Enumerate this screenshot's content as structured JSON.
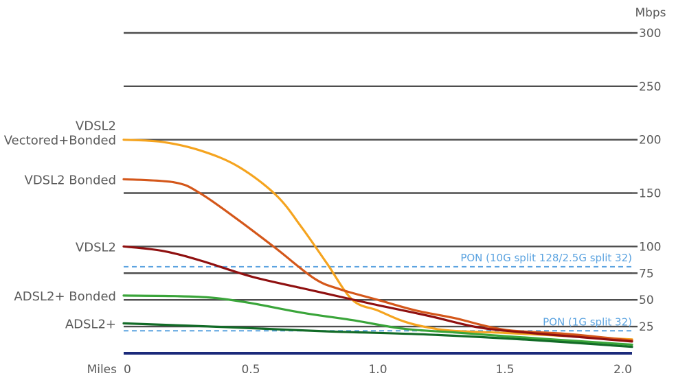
{
  "chart_data": {
    "type": "line",
    "y_unit_label": "Mbps",
    "x_unit_label": "Miles",
    "xlim": [
      0,
      2.0
    ],
    "ylim": [
      0,
      300
    ],
    "x_ticks": [
      {
        "value": 0,
        "label": "0"
      },
      {
        "value": 0.5,
        "label": "0.5"
      },
      {
        "value": 1.0,
        "label": "1.0"
      },
      {
        "value": 1.5,
        "label": "1.5"
      },
      {
        "value": 2.0,
        "label": "2.0"
      }
    ],
    "y_ticks": [
      {
        "value": 25,
        "label": "25"
      },
      {
        "value": 50,
        "label": "50"
      },
      {
        "value": 75,
        "label": "75"
      },
      {
        "value": 100,
        "label": "100"
      },
      {
        "value": 150,
        "label": "150"
      },
      {
        "value": 200,
        "label": "200"
      },
      {
        "value": 250,
        "label": "250"
      },
      {
        "value": 300,
        "label": "300"
      }
    ],
    "reference_lines": [
      {
        "label": "PON (10G split 128/2.5G split 32)",
        "value": 81,
        "color": "#5ba3e0"
      },
      {
        "label": "PON (1G split 32)",
        "value": 21,
        "color": "#5ba3e0"
      }
    ],
    "series": [
      {
        "name": "VDSL2 Vectored+Bonded",
        "color": "#f5a41f",
        "points": [
          [
            0,
            200
          ],
          [
            0.15,
            198
          ],
          [
            0.3,
            190
          ],
          [
            0.45,
            175
          ],
          [
            0.6,
            148
          ],
          [
            0.7,
            118
          ],
          [
            0.8,
            84
          ],
          [
            0.9,
            50
          ],
          [
            1.0,
            40
          ],
          [
            1.1,
            30
          ],
          [
            1.2,
            24
          ],
          [
            1.3,
            21
          ],
          [
            1.5,
            19
          ],
          [
            1.75,
            16
          ],
          [
            2.0,
            13
          ]
        ]
      },
      {
        "name": "VDSL2 Bonded",
        "color": "#d4571a",
        "points": [
          [
            0,
            163
          ],
          [
            0.2,
            160
          ],
          [
            0.3,
            150
          ],
          [
            0.45,
            125
          ],
          [
            0.6,
            98
          ],
          [
            0.75,
            70
          ],
          [
            0.85,
            60
          ],
          [
            1.0,
            50
          ],
          [
            1.15,
            40
          ],
          [
            1.3,
            33
          ],
          [
            1.5,
            22
          ],
          [
            1.75,
            18
          ],
          [
            2.0,
            12
          ]
        ]
      },
      {
        "name": "VDSL2",
        "color": "#8f1010",
        "points": [
          [
            0,
            100
          ],
          [
            0.15,
            96
          ],
          [
            0.3,
            87
          ],
          [
            0.5,
            72
          ],
          [
            0.7,
            61
          ],
          [
            0.85,
            53
          ],
          [
            1.0,
            45
          ],
          [
            1.2,
            35
          ],
          [
            1.4,
            24
          ],
          [
            1.6,
            19
          ],
          [
            1.8,
            15
          ],
          [
            2.0,
            11
          ]
        ]
      },
      {
        "name": "ADSL2+ Bonded",
        "color": "#3aa53a",
        "points": [
          [
            0,
            54
          ],
          [
            0.2,
            53.5
          ],
          [
            0.35,
            52
          ],
          [
            0.5,
            47
          ],
          [
            0.7,
            38
          ],
          [
            0.9,
            31
          ],
          [
            1.1,
            23
          ],
          [
            1.3,
            19.5
          ],
          [
            1.5,
            16
          ],
          [
            1.75,
            12
          ],
          [
            2.0,
            8
          ]
        ]
      },
      {
        "name": "ADSL2+",
        "color": "#126b27",
        "points": [
          [
            0,
            28
          ],
          [
            0.4,
            24.5
          ],
          [
            0.8,
            20.5
          ],
          [
            1.2,
            17.5
          ],
          [
            1.6,
            12.5
          ],
          [
            2.0,
            6
          ]
        ]
      }
    ],
    "baseline": {
      "value": 0,
      "color": "#1b2a7a"
    },
    "series_labels": [
      {
        "lines": [
          "VDSL2",
          "Vectored+Bonded"
        ],
        "value": 200
      },
      {
        "lines": [
          "VDSL2 Bonded"
        ],
        "value": 163
      },
      {
        "lines": [
          "VDSL2"
        ],
        "value": 100
      },
      {
        "lines": [
          "ADSL2+ Bonded"
        ],
        "value": 54
      },
      {
        "lines": [
          "ADSL2+"
        ],
        "value": 28
      }
    ]
  }
}
